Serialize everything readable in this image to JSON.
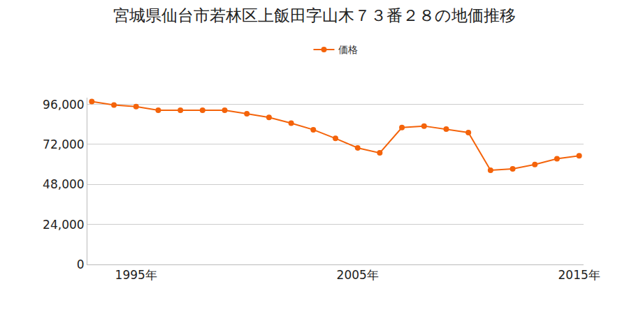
{
  "chart_data": {
    "type": "line",
    "title": "宮城県仙台市若林区上飯田字山木７３番２８の地価推移",
    "x": [
      1993,
      1994,
      1995,
      1996,
      1997,
      1998,
      1999,
      2000,
      2001,
      2002,
      2003,
      2004,
      2005,
      2006,
      2007,
      2008,
      2009,
      2010,
      2011,
      2012,
      2013,
      2014,
      2015
    ],
    "series": [
      {
        "name": "価格",
        "color": "#f4630a",
        "marker": "circle",
        "line_style": "solid",
        "values": [
          97700,
          95600,
          94700,
          92500,
          92500,
          92500,
          92500,
          90400,
          88200,
          84700,
          80800,
          75600,
          69900,
          66900,
          82100,
          83000,
          81200,
          79100,
          56500,
          57300,
          59900,
          63400,
          65200
        ]
      }
    ],
    "xlim": [
      1992.8,
      2015.2
    ],
    "xticks": [
      {
        "value": 1995,
        "label": "1995年"
      },
      {
        "value": 2005,
        "label": "2005年"
      },
      {
        "value": 2015,
        "label": "2015年"
      }
    ],
    "ylim": [
      0,
      100000
    ],
    "yticks": [
      0,
      {
        "value": 24000,
        "label": "24,000"
      },
      {
        "value": 48000,
        "label": "48,000"
      },
      {
        "value": 72000,
        "label": "72,000"
      },
      {
        "value": 96000,
        "label": "96,000"
      }
    ],
    "grid": "y",
    "legend": "top"
  }
}
